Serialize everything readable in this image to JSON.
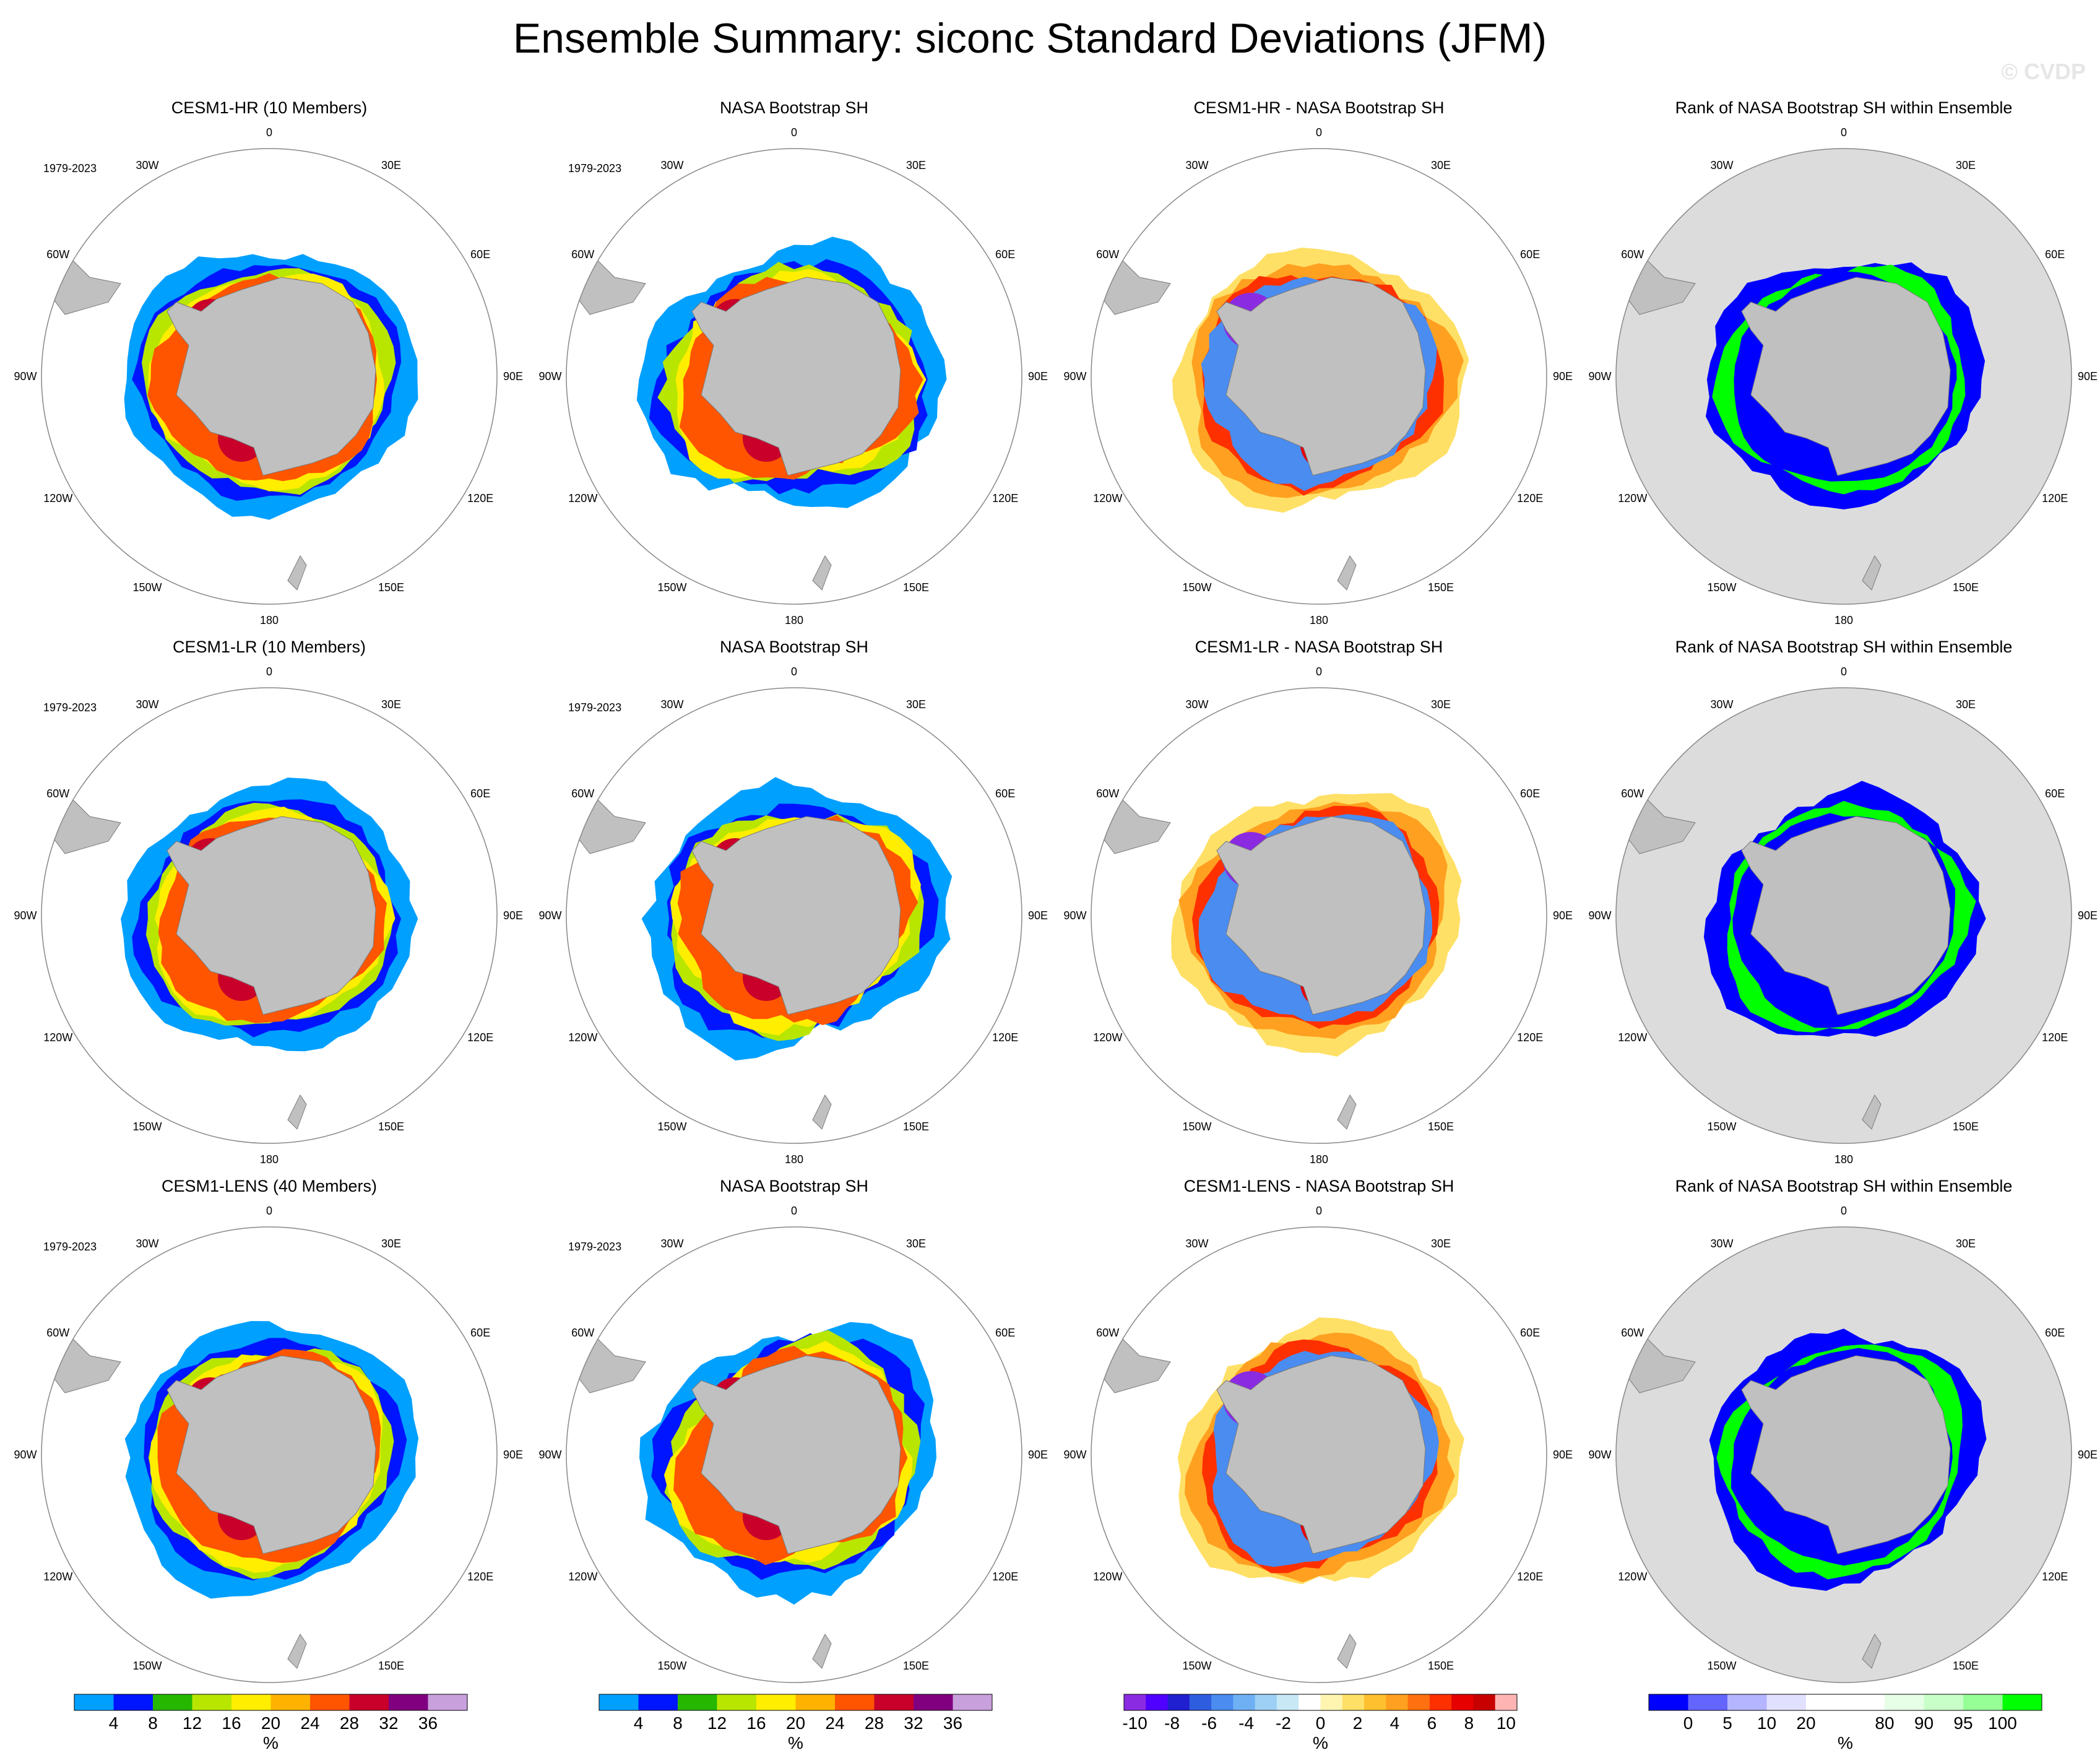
{
  "main_title": "Ensemble Summary: siconc Standard Deviations (JFM)",
  "watermark": "© CVDP",
  "longitude_labels": [
    "0",
    "30E",
    "60E",
    "90E",
    "120E",
    "150E",
    "180",
    "150W",
    "120W",
    "90W",
    "60W",
    "30W"
  ],
  "period_label": "1979-2023",
  "colors": {
    "land": "#c0c0c0",
    "ocean_rank": "#dcdcdc",
    "coast": "#7a7a7a",
    "model_title_hr": "#1b6f8c",
    "model_title_lr": "#5a9a6a",
    "model_title_lens": "#d8c870"
  },
  "panels": [
    {
      "title": "CESM1-HR (10 Members)",
      "title_color": "#1b6f8c",
      "kind": "std_model",
      "show_period": true
    },
    {
      "title": "NASA Bootstrap SH",
      "title_color": "#000000",
      "kind": "std_obs",
      "show_period": true
    },
    {
      "title": "CESM1-HR - NASA Bootstrap SH",
      "title_color": "#000000",
      "kind": "diff",
      "show_period": false
    },
    {
      "title": "Rank of NASA Bootstrap SH within Ensemble",
      "title_color": "#000000",
      "kind": "rank",
      "show_period": false
    },
    {
      "title": "CESM1-LR (10 Members)",
      "title_color": "#5a9a6a",
      "kind": "std_model",
      "show_period": true
    },
    {
      "title": "NASA Bootstrap SH",
      "title_color": "#000000",
      "kind": "std_obs",
      "show_period": true
    },
    {
      "title": "CESM1-LR - NASA Bootstrap SH",
      "title_color": "#000000",
      "kind": "diff",
      "show_period": false
    },
    {
      "title": "Rank of NASA Bootstrap SH within Ensemble",
      "title_color": "#000000",
      "kind": "rank",
      "show_period": false
    },
    {
      "title": "CESM1-LENS (40 Members)",
      "title_color": "#d8c870",
      "kind": "std_model",
      "show_period": true
    },
    {
      "title": "NASA Bootstrap SH",
      "title_color": "#000000",
      "kind": "std_obs",
      "show_period": true
    },
    {
      "title": "CESM1-LENS - NASA Bootstrap SH",
      "title_color": "#000000",
      "kind": "diff",
      "show_period": false
    },
    {
      "title": "Rank of NASA Bootstrap SH within Ensemble",
      "title_color": "#000000",
      "kind": "rank",
      "show_period": false
    }
  ],
  "colorbars": [
    {
      "unit": "%",
      "colors": [
        "#00a0ff",
        "#0015ff",
        "#26b800",
        "#b8e600",
        "#ffee00",
        "#ffb300",
        "#ff5500",
        "#c8002a",
        "#800080",
        "#c8a0dc"
      ],
      "labels": [
        "4",
        "8",
        "12",
        "16",
        "20",
        "24",
        "28",
        "32",
        "36"
      ]
    },
    {
      "unit": "%",
      "colors": [
        "#00a0ff",
        "#0015ff",
        "#26b800",
        "#b8e600",
        "#ffee00",
        "#ffb300",
        "#ff5500",
        "#c8002a",
        "#800080",
        "#c8a0dc"
      ],
      "labels": [
        "4",
        "8",
        "12",
        "16",
        "20",
        "24",
        "28",
        "32",
        "36"
      ]
    },
    {
      "unit": "%",
      "colors": [
        "#8a2be2",
        "#5000ff",
        "#2020d0",
        "#2f5de0",
        "#4a8cf0",
        "#6fb0f5",
        "#9ed0f5",
        "#c8e8f5",
        "#ffffff",
        "#fff5b0",
        "#ffe066",
        "#ffc030",
        "#ffa020",
        "#ff7010",
        "#ff3000",
        "#e60000",
        "#c80000",
        "#ffb4b4"
      ],
      "labels": [
        "-10",
        "-8",
        "-6",
        "-4",
        "-2",
        "0",
        "2",
        "4",
        "6",
        "8",
        "10"
      ]
    },
    {
      "unit": "%",
      "colors": [
        "#0000ff",
        "#6464ff",
        "#b4b4ff",
        "#e1e1ff",
        "#ffffff",
        "#ffffff",
        "#e6ffe6",
        "#c8ffc8",
        "#96ff96",
        "#00ff00"
      ],
      "labels": [
        "0",
        "5",
        "10",
        "20",
        "80",
        "90",
        "95",
        "100"
      ]
    }
  ]
}
